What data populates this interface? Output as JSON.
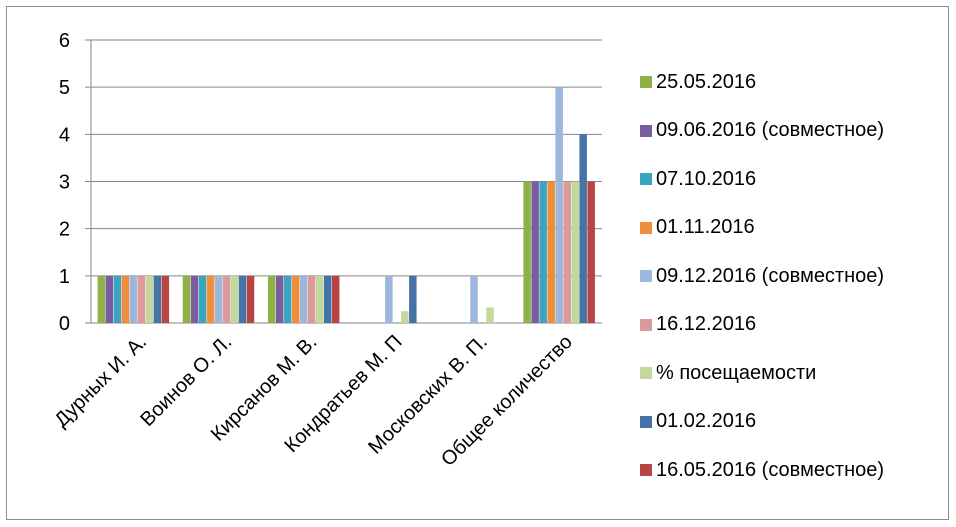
{
  "chart_data": {
    "type": "bar",
    "categories": [
      "Дурных И. А.",
      "Воинов О. Л.",
      "Кирсанов М. В.",
      "Кондратьев М. П",
      "Московских В. П.",
      "Общее количество"
    ],
    "series": [
      {
        "name": "25.05.2016",
        "color": "#8db245",
        "values": [
          1,
          1,
          1,
          0,
          0,
          3
        ]
      },
      {
        "name": "09.06.2016 (совместное)",
        "color": "#7a5da0",
        "values": [
          1,
          1,
          1,
          0,
          0,
          3
        ]
      },
      {
        "name": "07.10.2016",
        "color": "#3ba4c0",
        "values": [
          1,
          1,
          1,
          0,
          0,
          3
        ]
      },
      {
        "name": "01.11.2016",
        "color": "#f08d3a",
        "values": [
          1,
          1,
          1,
          0,
          0,
          3
        ]
      },
      {
        "name": "09.12.2016 (совместное)",
        "color": "#9db6dc",
        "values": [
          1,
          1,
          1,
          1,
          1,
          5
        ]
      },
      {
        "name": "16.12.2016",
        "color": "#dc9a9a",
        "values": [
          1,
          1,
          1,
          0,
          0,
          3
        ]
      },
      {
        "name": "% посещаемости",
        "color": "#c2d89c",
        "values": [
          1,
          1,
          1,
          0.25,
          0.33,
          3
        ]
      },
      {
        "name": "01.02.2016",
        "color": "#4572a7",
        "values": [
          1,
          1,
          1,
          1,
          0,
          4
        ]
      },
      {
        "name": "16.05.2016 (совместное)",
        "color": "#b84444",
        "values": [
          1,
          1,
          1,
          0,
          0,
          3
        ]
      }
    ],
    "yticks": [
      "0",
      "1",
      "2",
      "3",
      "4",
      "5",
      "6"
    ],
    "ylim": [
      0,
      6
    ],
    "grid": true,
    "legend": "right"
  }
}
